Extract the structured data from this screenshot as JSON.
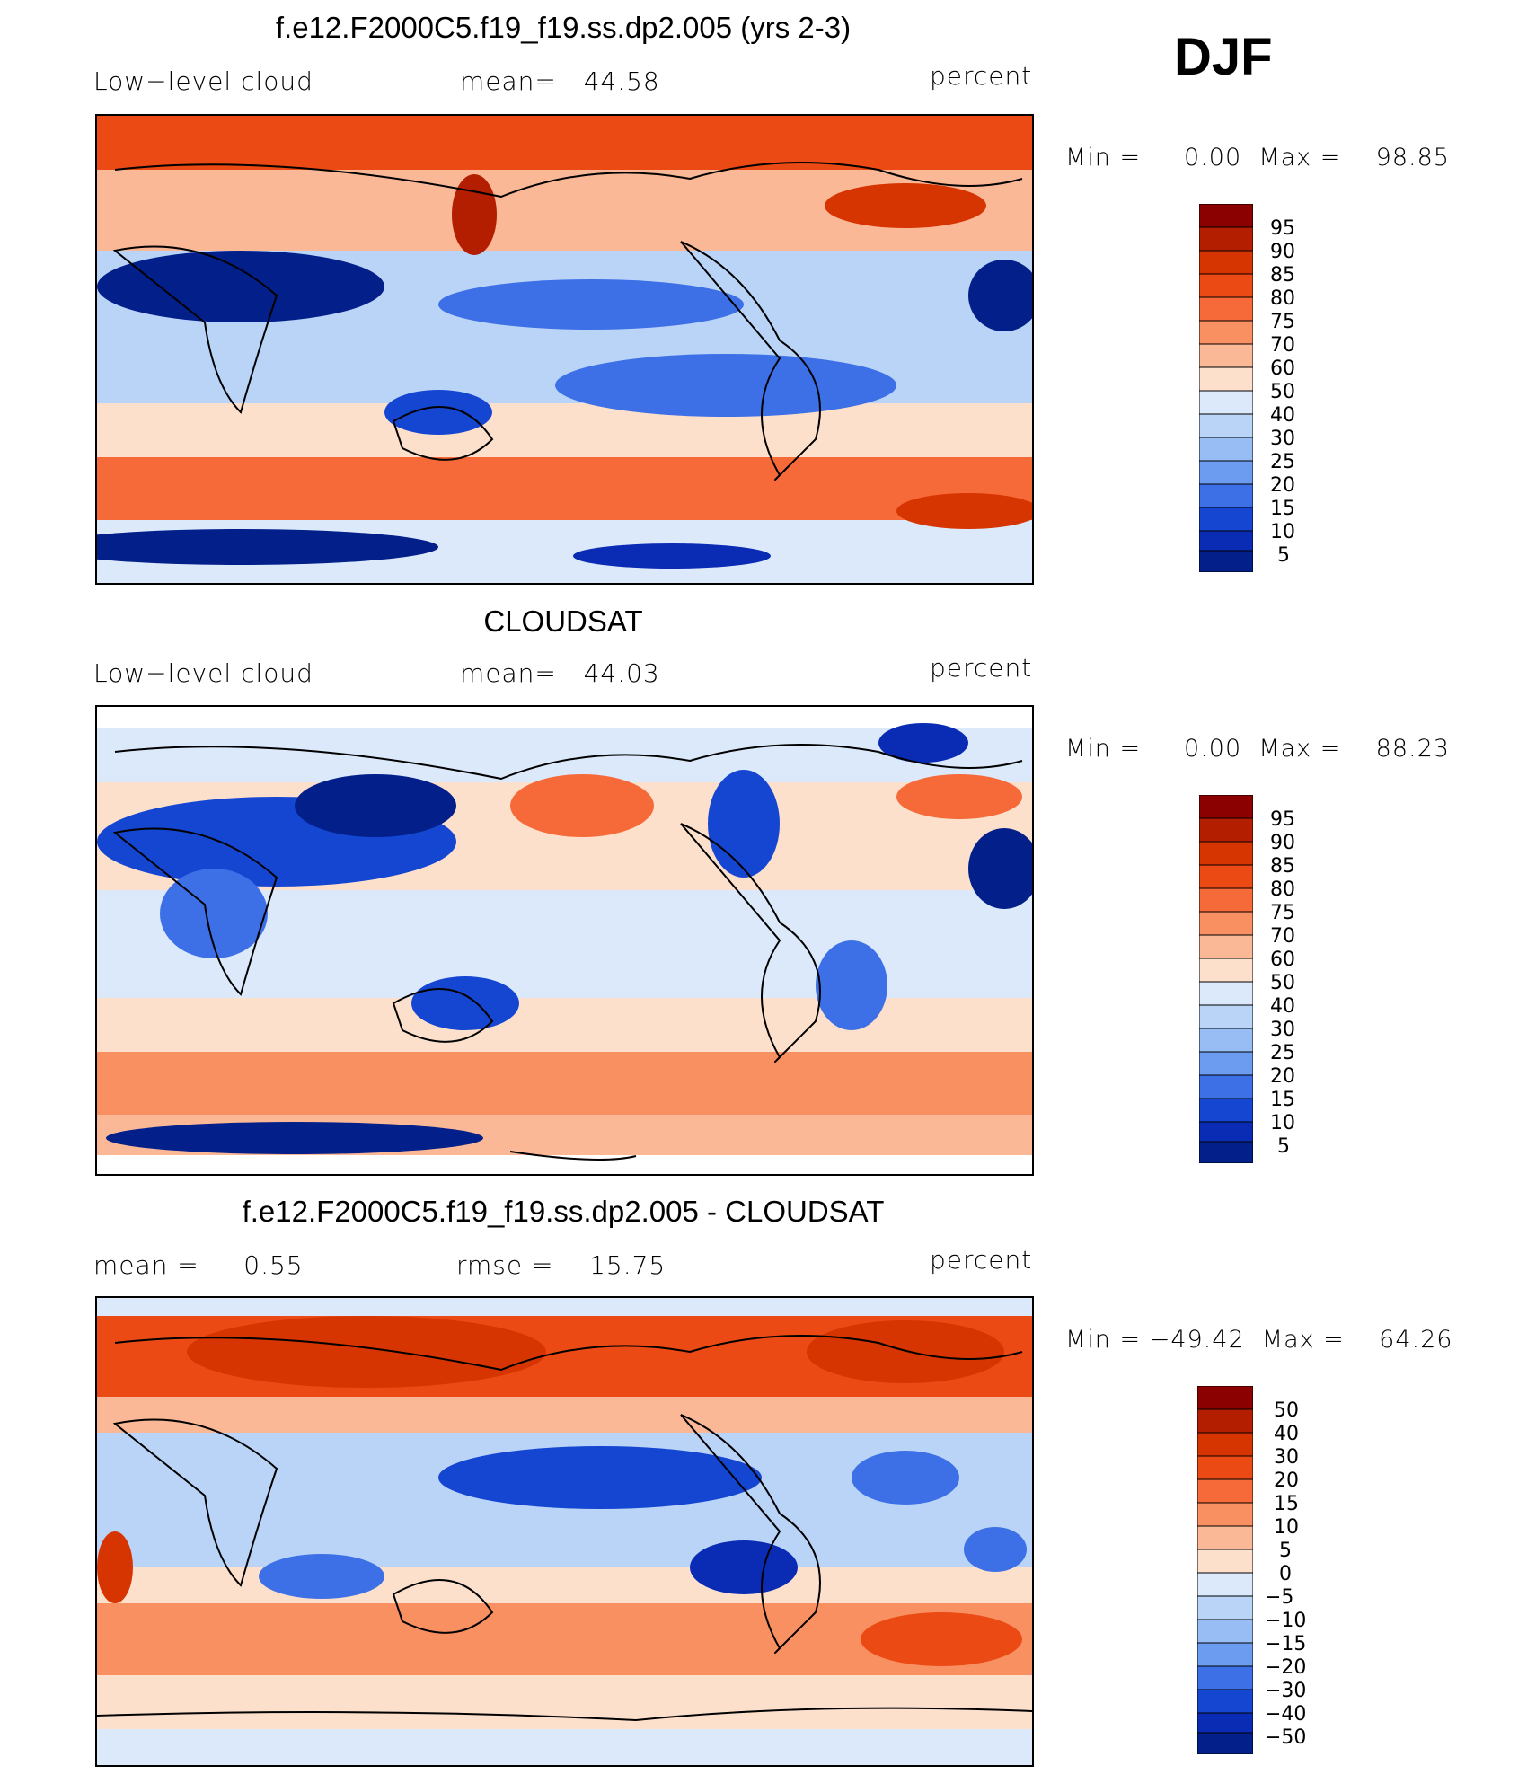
{
  "season": "DJF",
  "panels": [
    {
      "title": "f.e12.F2000C5.f19_f19.ss.dp2.005 (yrs 2-3)",
      "left_label": "Low−level cloud",
      "center_label": "mean=   44.58",
      "right_label": "percent",
      "minmax": "Min =     0.00  Max =    98.85",
      "colorbar_levels": [
        "95",
        "90",
        "85",
        "80",
        "75",
        "70",
        "60",
        "50",
        "40",
        "30",
        "25",
        "20",
        "15",
        "10",
        "5"
      ]
    },
    {
      "title": "CLOUDSAT",
      "left_label": "Low−level cloud",
      "center_label": "mean=   44.03",
      "right_label": "percent",
      "minmax": "Min =     0.00  Max =    88.23",
      "colorbar_levels": [
        "95",
        "90",
        "85",
        "80",
        "75",
        "70",
        "60",
        "50",
        "40",
        "30",
        "25",
        "20",
        "15",
        "10",
        "5"
      ]
    },
    {
      "title": "f.e12.F2000C5.f19_f19.ss.dp2.005 - CLOUDSAT",
      "left_label": "mean =     0.55",
      "center_label": "rmse =    15.75",
      "right_label": "percent",
      "minmax": "Min = −49.42  Max =    64.26",
      "colorbar_levels": [
        "50",
        "40",
        "30",
        "20",
        "15",
        "10",
        "5",
        "0",
        "−5",
        "−10",
        "−15",
        "−20",
        "−30",
        "−40",
        "−50"
      ]
    }
  ],
  "colors": {
    "scale": [
      "#8b0000",
      "#b31e00",
      "#d63400",
      "#eb4a14",
      "#f56a38",
      "#f99062",
      "#fbb896",
      "#fde0cc",
      "#dbe9fb",
      "#bad4f8",
      "#97bdf4",
      "#6c9cf0",
      "#3d70e6",
      "#1446d2",
      "#0a2bb4",
      "#021f8a"
    ],
    "outline": "#000000"
  },
  "chart_data": [
    {
      "type": "heatmap",
      "title": "f.e12.F2000C5.f19_f19.ss.dp2.005 (yrs 2-3)",
      "variable": "Low-level cloud",
      "units": "percent",
      "mean": 44.58,
      "min": 0.0,
      "max": 98.85,
      "levels": [
        5,
        10,
        15,
        20,
        25,
        30,
        40,
        50,
        60,
        70,
        75,
        80,
        85,
        90,
        95
      ]
    },
    {
      "type": "heatmap",
      "title": "CLOUDSAT",
      "variable": "Low-level cloud",
      "units": "percent",
      "mean": 44.03,
      "min": 0.0,
      "max": 88.23,
      "levels": [
        5,
        10,
        15,
        20,
        25,
        30,
        40,
        50,
        60,
        70,
        75,
        80,
        85,
        90,
        95
      ]
    },
    {
      "type": "heatmap",
      "title": "f.e12.F2000C5.f19_f19.ss.dp2.005 - CLOUDSAT",
      "units": "percent",
      "mean": 0.55,
      "rmse": 15.75,
      "min": -49.42,
      "max": 64.26,
      "levels": [
        -50,
        -40,
        -30,
        -20,
        -15,
        -10,
        -5,
        0,
        5,
        10,
        15,
        20,
        30,
        40,
        50
      ]
    }
  ]
}
